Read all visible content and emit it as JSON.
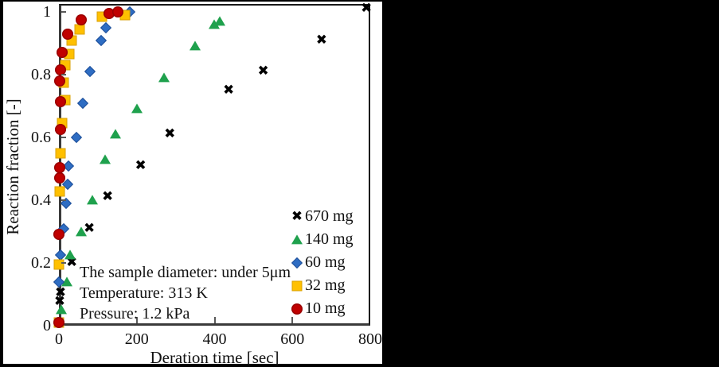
{
  "chart_data": {
    "type": "scatter",
    "title": "",
    "xlabel": "Deration time [sec]",
    "ylabel": "Reaction fraction [-]",
    "xlim": [
      0,
      800
    ],
    "ylim": [
      0,
      1.03
    ],
    "x_ticks": [
      0,
      200,
      400,
      600,
      800
    ],
    "y_ticks": [
      0,
      0.2,
      0.4,
      0.6,
      0.8,
      1
    ],
    "grid": false,
    "legend_position": "inside lower right",
    "annotations": [
      "The sample diameter: under 5μm",
      "Temperature: 313 K",
      "Pressure: 1.2 kPa"
    ],
    "series": [
      {
        "name": "670 mg",
        "marker": "x",
        "color": "#000000",
        "points": [
          [
            2,
            0.075
          ],
          [
            4,
            0.105
          ],
          [
            33,
            0.2
          ],
          [
            78,
            0.31
          ],
          [
            125,
            0.41
          ],
          [
            210,
            0.51
          ],
          [
            285,
            0.61
          ],
          [
            436,
            0.75
          ],
          [
            525,
            0.81
          ],
          [
            675,
            0.91
          ],
          [
            790,
            1.01
          ]
        ]
      },
      {
        "name": "140 mg",
        "marker": "triangle",
        "color": "#1FA14D",
        "points": [
          [
            7,
            0.05
          ],
          [
            21,
            0.14
          ],
          [
            29,
            0.225
          ],
          [
            57,
            0.3
          ],
          [
            85,
            0.4
          ],
          [
            118,
            0.53
          ],
          [
            146,
            0.61
          ],
          [
            200,
            0.69
          ],
          [
            270,
            0.79
          ],
          [
            350,
            0.89
          ],
          [
            398,
            0.96
          ],
          [
            413,
            0.97
          ]
        ]
      },
      {
        "name": "60 mg",
        "marker": "diamond",
        "color": "#2E6DC3",
        "points": [
          [
            0,
            0.14
          ],
          [
            4,
            0.225
          ],
          [
            12,
            0.31
          ],
          [
            19,
            0.39
          ],
          [
            22,
            0.45
          ],
          [
            25,
            0.51
          ],
          [
            44,
            0.6
          ],
          [
            62,
            0.71
          ],
          [
            80,
            0.81
          ],
          [
            108,
            0.91
          ],
          [
            121,
            0.95
          ],
          [
            182,
            1.0
          ]
        ]
      },
      {
        "name": "32 mg",
        "marker": "square",
        "color": "#FFC000",
        "points": [
          [
            0,
            0.01
          ],
          [
            1,
            0.196
          ],
          [
            2,
            0.427
          ],
          [
            5,
            0.55
          ],
          [
            9,
            0.645
          ],
          [
            17,
            0.72
          ],
          [
            13,
            0.775
          ],
          [
            17,
            0.83
          ],
          [
            26,
            0.865
          ],
          [
            33,
            0.91
          ],
          [
            53,
            0.945
          ],
          [
            110,
            0.985
          ],
          [
            170,
            0.99
          ]
        ]
      },
      {
        "name": "10 mg",
        "marker": "circle",
        "color": "#C00000",
        "points": [
          [
            0,
            0.01
          ],
          [
            1,
            0.29
          ],
          [
            2,
            0.47
          ],
          [
            2,
            0.505
          ],
          [
            4,
            0.625
          ],
          [
            4,
            0.715
          ],
          [
            2,
            0.78
          ],
          [
            4,
            0.815
          ],
          [
            9,
            0.87
          ],
          [
            22,
            0.93
          ],
          [
            57,
            0.975
          ],
          [
            128,
            0.995
          ],
          [
            152,
            1.0
          ]
        ]
      }
    ]
  }
}
